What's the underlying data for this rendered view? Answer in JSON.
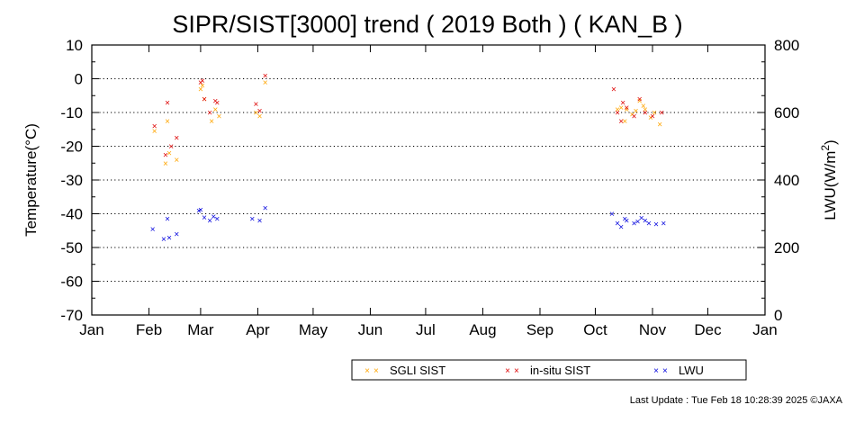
{
  "chart_data": {
    "type": "scatter",
    "title": "SIPR/SIST[3000] trend ( 2019 Both ) ( KAN_B )",
    "ylabel": "Temperature(°C)",
    "y2label_main": "LWU(W/m",
    "y2label_sup": "2",
    "y2label_end": ")",
    "ylim": [
      -70,
      10
    ],
    "y2lim": [
      0,
      800
    ],
    "yticks": [
      "10",
      "0",
      "-10",
      "-20",
      "-30",
      "-40",
      "-50",
      "-60",
      "-70"
    ],
    "y2ticks": [
      "800",
      "600",
      "400",
      "200",
      "0"
    ],
    "xticks": [
      "Jan",
      "Feb",
      "Mar",
      "Apr",
      "May",
      "Jun",
      "Jul",
      "Aug",
      "Sep",
      "Oct",
      "Nov",
      "Dec",
      "Jan"
    ],
    "marker": "×",
    "series": [
      {
        "name": "SGLI SIST",
        "color": "#ffa500",
        "axis": "left",
        "points": [
          [
            "2019-02-04",
            -15.5
          ],
          [
            "2019-02-10",
            -25
          ],
          [
            "2019-02-11",
            -12.5
          ],
          [
            "2019-02-12",
            -22
          ],
          [
            "2019-02-16",
            -24
          ],
          [
            "2019-03-01",
            -3
          ],
          [
            "2019-03-02",
            -2
          ],
          [
            "2019-03-03",
            -6
          ],
          [
            "2019-03-07",
            -12.5
          ],
          [
            "2019-03-09",
            -9
          ],
          [
            "2019-03-11",
            -11
          ],
          [
            "2019-03-31",
            -10
          ],
          [
            "2019-04-02",
            -11
          ],
          [
            "2019-04-05",
            -1
          ],
          [
            "2019-10-13",
            -9
          ],
          [
            "2019-10-15",
            -8.5
          ],
          [
            "2019-10-17",
            -12.5
          ],
          [
            "2019-10-18",
            -9
          ],
          [
            "2019-10-21",
            -10.5
          ],
          [
            "2019-10-23",
            -9.5
          ],
          [
            "2019-10-25",
            -6.5
          ],
          [
            "2019-10-27",
            -8
          ],
          [
            "2019-10-28",
            -9
          ],
          [
            "2019-10-31",
            -11.5
          ],
          [
            "2019-11-02",
            -10
          ],
          [
            "2019-11-05",
            -13.5
          ]
        ]
      },
      {
        "name": "in-situ SIST",
        "color": "#dd0000",
        "axis": "left",
        "points": [
          [
            "2019-02-04",
            -14
          ],
          [
            "2019-02-10",
            -22.5
          ],
          [
            "2019-02-11",
            -7
          ],
          [
            "2019-02-13",
            -20
          ],
          [
            "2019-02-16",
            -17.5
          ],
          [
            "2019-03-01",
            -1
          ],
          [
            "2019-03-02",
            -0.5
          ],
          [
            "2019-03-03",
            -6
          ],
          [
            "2019-03-06",
            -10
          ],
          [
            "2019-03-09",
            -6.5
          ],
          [
            "2019-03-10",
            -7
          ],
          [
            "2019-03-31",
            -7.5
          ],
          [
            "2019-04-02",
            -9.5
          ],
          [
            "2019-04-05",
            1
          ],
          [
            "2019-10-11",
            -3
          ],
          [
            "2019-10-13",
            -10
          ],
          [
            "2019-10-15",
            -12.5
          ],
          [
            "2019-10-16",
            -7
          ],
          [
            "2019-10-18",
            -8.5
          ],
          [
            "2019-10-22",
            -11
          ],
          [
            "2019-10-25",
            -6
          ],
          [
            "2019-10-28",
            -10
          ],
          [
            "2019-11-01",
            -11
          ],
          [
            "2019-11-06",
            -10
          ]
        ]
      },
      {
        "name": "LWU",
        "color": "#0000dd",
        "axis": "right",
        "points": [
          [
            "2019-02-03",
            255
          ],
          [
            "2019-02-09",
            225
          ],
          [
            "2019-02-11",
            285
          ],
          [
            "2019-02-12",
            230
          ],
          [
            "2019-02-16",
            240
          ],
          [
            "2019-02-28",
            310
          ],
          [
            "2019-03-01",
            312
          ],
          [
            "2019-03-03",
            290
          ],
          [
            "2019-03-06",
            280
          ],
          [
            "2019-03-08",
            292
          ],
          [
            "2019-03-10",
            285
          ],
          [
            "2019-03-29",
            285
          ],
          [
            "2019-04-02",
            280
          ],
          [
            "2019-04-05",
            318
          ],
          [
            "2019-10-10",
            300
          ],
          [
            "2019-10-13",
            272
          ],
          [
            "2019-10-15",
            262
          ],
          [
            "2019-10-17",
            285
          ],
          [
            "2019-10-18",
            280
          ],
          [
            "2019-10-22",
            272
          ],
          [
            "2019-10-24",
            278
          ],
          [
            "2019-10-26",
            288
          ],
          [
            "2019-10-28",
            280
          ],
          [
            "2019-10-30",
            272
          ],
          [
            "2019-11-03",
            270
          ],
          [
            "2019-11-07",
            272
          ]
        ]
      }
    ]
  },
  "legend": {
    "items": [
      {
        "label": "SGLI SIST",
        "color": "#ffa500"
      },
      {
        "label": "in-situ SIST",
        "color": "#dd0000"
      },
      {
        "label": "LWU",
        "color": "#0000dd"
      }
    ]
  },
  "footer": {
    "text": "Last Update : Tue Feb 18 10:28:39 2025  ©JAXA"
  }
}
